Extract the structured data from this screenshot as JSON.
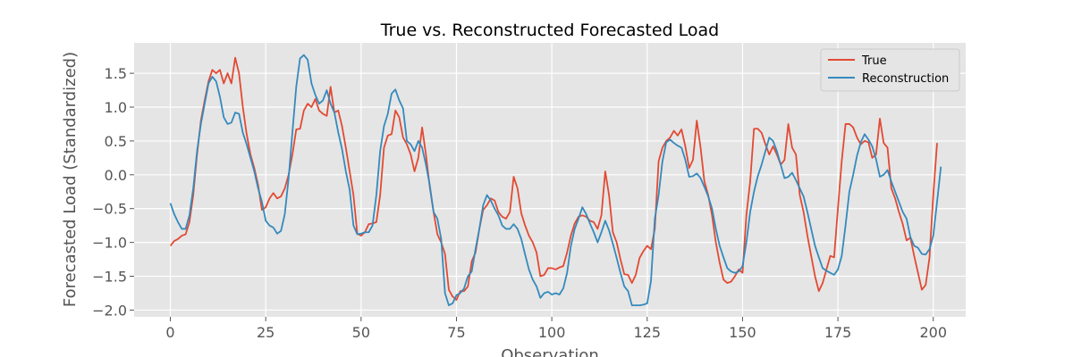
{
  "chart_data": {
    "type": "line",
    "title": "True vs. Reconstructed Forecasted Load",
    "xlabel": "Observation",
    "ylabel": "Forecasted Load (Standardized)",
    "xlim": [
      -9.5,
      208.5
    ],
    "ylim": [
      -2.1,
      1.95
    ],
    "x_ticks": [
      0,
      25,
      50,
      75,
      100,
      125,
      150,
      175,
      200
    ],
    "x_tick_labels": [
      "0",
      "25",
      "50",
      "75",
      "100",
      "125",
      "150",
      "175",
      "200"
    ],
    "y_ticks": [
      -2.0,
      -1.5,
      -1.0,
      -0.5,
      0.0,
      0.5,
      1.0,
      1.5
    ],
    "y_tick_labels": [
      "−2.0",
      "−1.5",
      "−1.0",
      "−0.5",
      "0.0",
      "0.5",
      "1.0",
      "1.5"
    ],
    "grid": true,
    "legend_position": "top-right",
    "x_start": 0,
    "series": [
      {
        "name": "True",
        "color": "#E24A33",
        "values": [
          -1.05,
          -0.98,
          -0.95,
          -0.9,
          -0.88,
          -0.7,
          -0.3,
          0.3,
          0.8,
          1.1,
          1.38,
          1.55,
          1.5,
          1.55,
          1.35,
          1.5,
          1.35,
          1.73,
          1.5,
          1.0,
          0.6,
          0.3,
          0.1,
          -0.15,
          -0.52,
          -0.48,
          -0.35,
          -0.27,
          -0.35,
          -0.32,
          -0.2,
          0.0,
          0.3,
          0.67,
          0.68,
          0.95,
          1.05,
          1.0,
          1.12,
          0.95,
          0.9,
          0.87,
          1.3,
          0.92,
          0.95,
          0.72,
          0.4,
          0.05,
          -0.3,
          -0.87,
          -0.9,
          -0.85,
          -0.73,
          -0.72,
          -0.7,
          -0.3,
          0.4,
          0.58,
          0.6,
          0.95,
          0.85,
          0.55,
          0.45,
          0.3,
          0.05,
          0.25,
          0.7,
          0.3,
          -0.18,
          -0.55,
          -0.88,
          -1.0,
          -1.17,
          -1.7,
          -1.8,
          -1.85,
          -1.72,
          -1.72,
          -1.65,
          -1.28,
          -1.15,
          -0.8,
          -0.52,
          -0.45,
          -0.35,
          -0.38,
          -0.55,
          -0.62,
          -0.65,
          -0.55,
          -0.03,
          -0.2,
          -0.57,
          -0.75,
          -0.9,
          -1.0,
          -1.15,
          -1.5,
          -1.48,
          -1.38,
          -1.38,
          -1.4,
          -1.37,
          -1.35,
          -1.15,
          -0.9,
          -0.72,
          -0.62,
          -0.6,
          -0.62,
          -0.68,
          -0.7,
          -0.8,
          -0.6,
          0.05,
          -0.3,
          -0.85,
          -1.0,
          -1.25,
          -1.47,
          -1.48,
          -1.6,
          -1.48,
          -1.23,
          -1.13,
          -1.05,
          -1.1,
          -0.8,
          0.2,
          0.4,
          0.5,
          0.55,
          0.65,
          0.58,
          0.67,
          0.42,
          0.1,
          0.22,
          0.8,
          0.4,
          -0.1,
          -0.3,
          -0.6,
          -1.0,
          -1.3,
          -1.55,
          -1.6,
          -1.58,
          -1.5,
          -1.4,
          -1.45,
          -0.6,
          -0.1,
          0.68,
          0.68,
          0.62,
          0.45,
          0.3,
          0.42,
          0.3,
          0.15,
          0.22,
          0.75,
          0.4,
          0.3,
          -0.3,
          -0.55,
          -0.9,
          -1.2,
          -1.5,
          -1.72,
          -1.6,
          -1.4,
          -1.2,
          -1.22,
          -0.5,
          0.2,
          0.75,
          0.75,
          0.7,
          0.55,
          0.45,
          0.5,
          0.48,
          0.25,
          0.3,
          0.83,
          0.47,
          0.4,
          -0.2,
          -0.35,
          -0.55,
          -0.73,
          -0.97,
          -0.93,
          -1.2,
          -1.45,
          -1.7,
          -1.63,
          -1.23,
          -0.3,
          0.47
        ]
      },
      {
        "name": "Reconstruction",
        "color": "#348ABD",
        "values": [
          -0.42,
          -0.58,
          -0.7,
          -0.8,
          -0.8,
          -0.6,
          -0.2,
          0.35,
          0.75,
          1.05,
          1.35,
          1.45,
          1.38,
          1.15,
          0.85,
          0.75,
          0.77,
          0.92,
          0.9,
          0.62,
          0.45,
          0.25,
          0.05,
          -0.2,
          -0.4,
          -0.68,
          -0.75,
          -0.78,
          -0.87,
          -0.83,
          -0.58,
          -0.05,
          0.63,
          1.3,
          1.72,
          1.77,
          1.7,
          1.35,
          1.18,
          1.05,
          1.1,
          1.25,
          1.05,
          0.92,
          0.63,
          0.38,
          0.05,
          -0.22,
          -0.75,
          -0.88,
          -0.87,
          -0.85,
          -0.85,
          -0.75,
          -0.3,
          0.35,
          0.72,
          0.9,
          1.2,
          1.26,
          1.1,
          0.98,
          0.5,
          0.45,
          0.35,
          0.5,
          0.4,
          0.15,
          -0.15,
          -0.55,
          -0.65,
          -0.95,
          -1.75,
          -1.93,
          -1.9,
          -1.78,
          -1.75,
          -1.68,
          -1.5,
          -1.43,
          -1.1,
          -0.8,
          -0.45,
          -0.3,
          -0.38,
          -0.5,
          -0.6,
          -0.75,
          -0.8,
          -0.8,
          -0.73,
          -0.8,
          -0.95,
          -1.18,
          -1.4,
          -1.55,
          -1.65,
          -1.82,
          -1.75,
          -1.73,
          -1.77,
          -1.75,
          -1.77,
          -1.68,
          -1.45,
          -1.05,
          -0.8,
          -0.65,
          -0.48,
          -0.58,
          -0.72,
          -0.85,
          -1.0,
          -0.85,
          -0.68,
          -0.82,
          -1.02,
          -1.23,
          -1.45,
          -1.65,
          -1.72,
          -1.93,
          -1.93,
          -1.93,
          -1.92,
          -1.9,
          -1.57,
          -0.65,
          -0.3,
          0.2,
          0.48,
          0.52,
          0.47,
          0.43,
          0.4,
          0.22,
          -0.03,
          -0.02,
          0.02,
          -0.05,
          -0.18,
          -0.32,
          -0.5,
          -0.8,
          -1.05,
          -1.22,
          -1.38,
          -1.43,
          -1.45,
          -1.43,
          -1.35,
          -1.0,
          -0.55,
          -0.25,
          -0.02,
          0.15,
          0.35,
          0.55,
          0.5,
          0.35,
          0.15,
          -0.05,
          -0.03,
          0.03,
          -0.08,
          -0.2,
          -0.32,
          -0.55,
          -0.8,
          -1.05,
          -1.22,
          -1.38,
          -1.42,
          -1.45,
          -1.48,
          -1.4,
          -1.2,
          -0.75,
          -0.25,
          0.0,
          0.28,
          0.48,
          0.6,
          0.52,
          0.42,
          0.23,
          -0.03,
          0.0,
          0.07,
          -0.1,
          -0.25,
          -0.4,
          -0.55,
          -0.65,
          -0.92,
          -1.05,
          -1.08,
          -1.17,
          -1.18,
          -1.1,
          -0.9,
          -0.4,
          0.12
        ]
      }
    ]
  }
}
